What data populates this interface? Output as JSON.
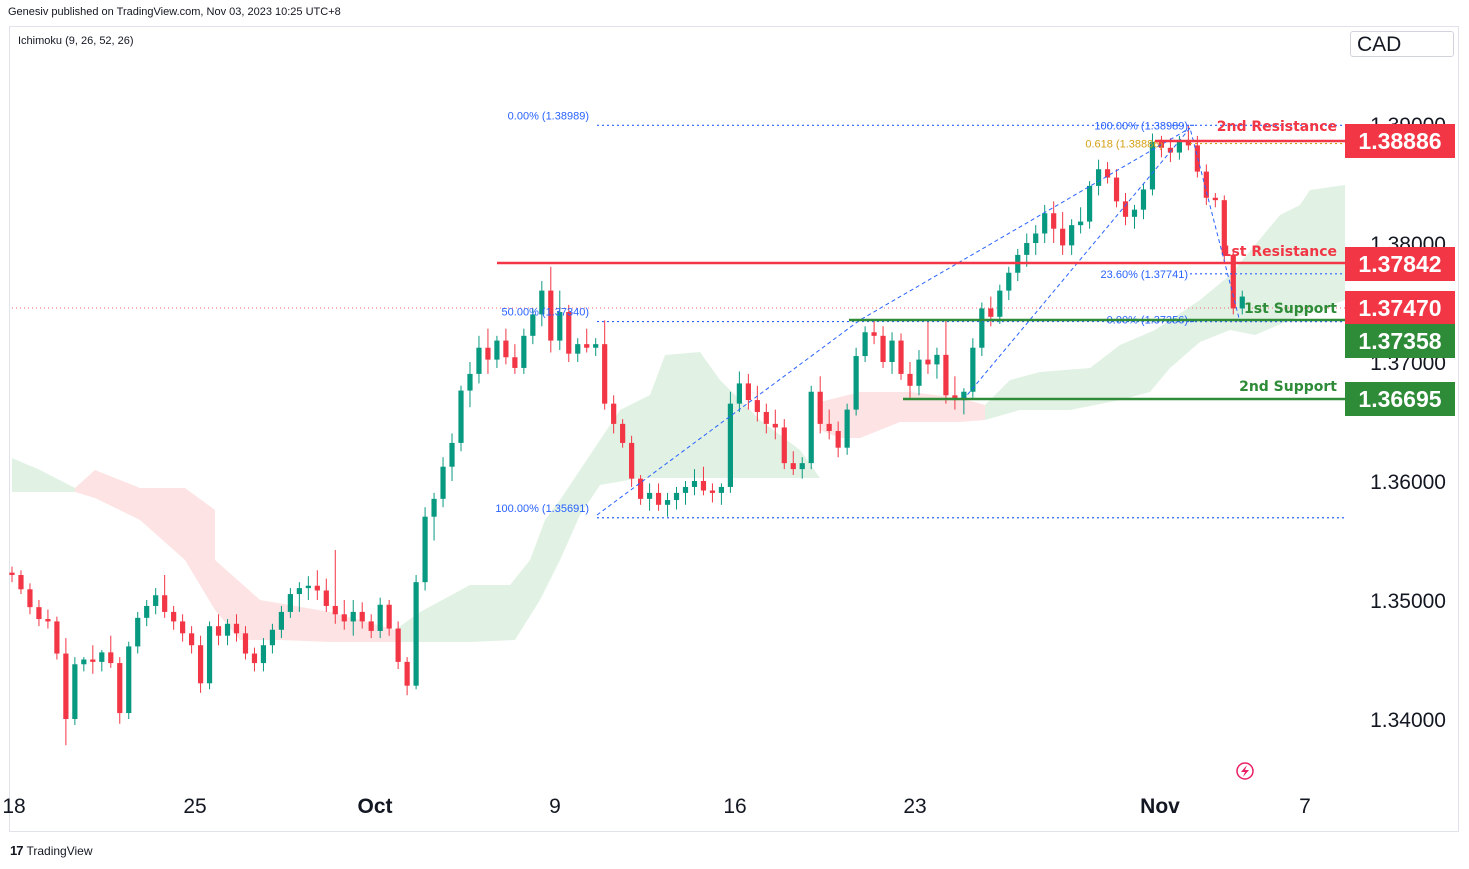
{
  "header": {
    "published": "Genesiv published on TradingView.com, Nov 03, 2023 10:25 UTC+8"
  },
  "indicator": {
    "label": "Ichimoku (9, 26, 52, 26)"
  },
  "currency": "CAD",
  "footer": {
    "brand": "TradingView"
  },
  "colors": {
    "up": "#089981",
    "down": "#f23645",
    "resistance": "#f23645",
    "support": "#2e8b37",
    "fib": "#2962ff",
    "fib_golden": "#d4a017",
    "cloud_bull": "#e1f2e4",
    "cloud_bear": "#fde3e3"
  },
  "chart_data": {
    "type": "candlestick",
    "y_axis": {
      "ticks": [
        "1.39000",
        "1.38000",
        "1.37000",
        "1.36000",
        "1.35000",
        "1.34000"
      ],
      "tick_values": [
        1.39,
        1.38,
        1.37,
        1.36,
        1.35,
        1.34
      ],
      "range": [
        1.3345,
        1.3935
      ]
    },
    "x_axis": {
      "ticks": [
        "18",
        "25",
        "Oct",
        "9",
        "16",
        "23",
        "Nov",
        "7"
      ]
    },
    "candles": [
      [
        1.3523,
        1.3528,
        1.3515,
        1.3521
      ],
      [
        1.3521,
        1.3525,
        1.3505,
        1.3509
      ],
      [
        1.3509,
        1.3514,
        1.3488,
        1.3494
      ],
      [
        1.3494,
        1.35,
        1.3478,
        1.3484
      ],
      [
        1.3484,
        1.3492,
        1.3476,
        1.3482
      ],
      [
        1.3482,
        1.3486,
        1.345,
        1.3455
      ],
      [
        1.3455,
        1.3468,
        1.3378,
        1.34
      ],
      [
        1.34,
        1.3452,
        1.3395,
        1.3446
      ],
      [
        1.3446,
        1.3452,
        1.344,
        1.345
      ],
      [
        1.345,
        1.3462,
        1.3438,
        1.3448
      ],
      [
        1.3448,
        1.3458,
        1.344,
        1.3456
      ],
      [
        1.3456,
        1.347,
        1.3443,
        1.3447
      ],
      [
        1.3447,
        1.3452,
        1.3396,
        1.3405
      ],
      [
        1.3405,
        1.3465,
        1.34,
        1.3461
      ],
      [
        1.3461,
        1.349,
        1.3455,
        1.3485
      ],
      [
        1.3485,
        1.35,
        1.3478,
        1.3495
      ],
      [
        1.3495,
        1.351,
        1.3488,
        1.3504
      ],
      [
        1.3504,
        1.3521,
        1.3485,
        1.349
      ],
      [
        1.349,
        1.3495,
        1.3475,
        1.3482
      ],
      [
        1.3482,
        1.3488,
        1.3465,
        1.3472
      ],
      [
        1.3472,
        1.3478,
        1.3455,
        1.3462
      ],
      [
        1.3462,
        1.347,
        1.3422,
        1.343
      ],
      [
        1.343,
        1.3482,
        1.3425,
        1.3478
      ],
      [
        1.3478,
        1.3488,
        1.3462,
        1.347
      ],
      [
        1.347,
        1.3484,
        1.3462,
        1.348
      ],
      [
        1.348,
        1.3488,
        1.3465,
        1.3472
      ],
      [
        1.3472,
        1.3478,
        1.345,
        1.3455
      ],
      [
        1.3455,
        1.346,
        1.344,
        1.3447
      ],
      [
        1.3447,
        1.3468,
        1.344,
        1.3462
      ],
      [
        1.3462,
        1.348,
        1.3455,
        1.3475
      ],
      [
        1.3475,
        1.3495,
        1.3468,
        1.349
      ],
      [
        1.349,
        1.351,
        1.3485,
        1.3505
      ],
      [
        1.3505,
        1.3515,
        1.349,
        1.351
      ],
      [
        1.351,
        1.352,
        1.35,
        1.3512
      ],
      [
        1.3512,
        1.3525,
        1.35,
        1.3508
      ],
      [
        1.3508,
        1.3518,
        1.349,
        1.3495
      ],
      [
        1.3495,
        1.3542,
        1.348,
        1.3488
      ],
      [
        1.3488,
        1.35,
        1.3475,
        1.3482
      ],
      [
        1.3482,
        1.35,
        1.347,
        1.349
      ],
      [
        1.349,
        1.3498,
        1.3476,
        1.3482
      ],
      [
        1.3482,
        1.3488,
        1.3468,
        1.3474
      ],
      [
        1.3474,
        1.3502,
        1.3468,
        1.3496
      ],
      [
        1.3496,
        1.35,
        1.347,
        1.3476
      ],
      [
        1.3476,
        1.3482,
        1.3442,
        1.3448
      ],
      [
        1.3448,
        1.3452,
        1.342,
        1.3428
      ],
      [
        1.3428,
        1.3521,
        1.3425,
        1.3515
      ],
      [
        1.3515,
        1.3578,
        1.3508,
        1.357
      ],
      [
        1.357,
        1.359,
        1.355,
        1.3585
      ],
      [
        1.3585,
        1.362,
        1.3578,
        1.3612
      ],
      [
        1.3612,
        1.364,
        1.36,
        1.3632
      ],
      [
        1.3632,
        1.368,
        1.3625,
        1.3676
      ],
      [
        1.3676,
        1.37,
        1.3662,
        1.369
      ],
      [
        1.369,
        1.3722,
        1.3682,
        1.3712
      ],
      [
        1.3712,
        1.3728,
        1.369,
        1.3702
      ],
      [
        1.3702,
        1.3722,
        1.3695,
        1.3718
      ],
      [
        1.3718,
        1.3728,
        1.3698,
        1.3704
      ],
      [
        1.3704,
        1.3715,
        1.369,
        1.3695
      ],
      [
        1.3695,
        1.3728,
        1.369,
        1.3722
      ],
      [
        1.3722,
        1.3745,
        1.3715,
        1.374
      ],
      [
        1.374,
        1.3768,
        1.373,
        1.376
      ],
      [
        1.376,
        1.378,
        1.3708,
        1.3718
      ],
      [
        1.3718,
        1.376,
        1.371,
        1.3742
      ],
      [
        1.3742,
        1.3748,
        1.37,
        1.3707
      ],
      [
        1.3707,
        1.372,
        1.37,
        1.3715
      ],
      [
        1.3715,
        1.3728,
        1.3708,
        1.3712
      ],
      [
        1.3712,
        1.372,
        1.3705,
        1.3715
      ],
      [
        1.3715,
        1.3735,
        1.366,
        1.3665
      ],
      [
        1.3665,
        1.3672,
        1.364,
        1.3648
      ],
      [
        1.3648,
        1.3652,
        1.3628,
        1.3632
      ],
      [
        1.3632,
        1.3638,
        1.3595,
        1.3602
      ],
      [
        1.3602,
        1.3605,
        1.358,
        1.3585
      ],
      [
        1.3585,
        1.3598,
        1.3575,
        1.359
      ],
      [
        1.359,
        1.3598,
        1.3575,
        1.358
      ],
      [
        1.358,
        1.359,
        1.357,
        1.3584
      ],
      [
        1.3584,
        1.3595,
        1.3576,
        1.359
      ],
      [
        1.359,
        1.36,
        1.358,
        1.3595
      ],
      [
        1.3595,
        1.361,
        1.3588,
        1.36
      ],
      [
        1.36,
        1.3612,
        1.3588,
        1.3592
      ],
      [
        1.3592,
        1.3598,
        1.3582,
        1.359
      ],
      [
        1.359,
        1.3598,
        1.358,
        1.3595
      ],
      [
        1.3595,
        1.3675,
        1.359,
        1.3665
      ],
      [
        1.3665,
        1.3692,
        1.3658,
        1.3682
      ],
      [
        1.3682,
        1.369,
        1.366,
        1.3668
      ],
      [
        1.3668,
        1.368,
        1.365,
        1.3658
      ],
      [
        1.3658,
        1.3665,
        1.364,
        1.3648
      ],
      [
        1.3648,
        1.366,
        1.3635,
        1.3645
      ],
      [
        1.3645,
        1.3652,
        1.361,
        1.3615
      ],
      [
        1.3615,
        1.3625,
        1.3605,
        1.361
      ],
      [
        1.361,
        1.362,
        1.3602,
        1.3615
      ],
      [
        1.3615,
        1.368,
        1.361,
        1.3675
      ],
      [
        1.3675,
        1.3688,
        1.364,
        1.3648
      ],
      [
        1.3648,
        1.366,
        1.3635,
        1.3642
      ],
      [
        1.3642,
        1.365,
        1.362,
        1.3628
      ],
      [
        1.3628,
        1.3665,
        1.3622,
        1.366
      ],
      [
        1.366,
        1.3712,
        1.3655,
        1.3705
      ],
      [
        1.3705,
        1.373,
        1.37,
        1.3725
      ],
      [
        1.3725,
        1.3736,
        1.3715,
        1.3722
      ],
      [
        1.3722,
        1.373,
        1.3695,
        1.37
      ],
      [
        1.37,
        1.3725,
        1.369,
        1.3718
      ],
      [
        1.3718,
        1.3724,
        1.3685,
        1.369
      ],
      [
        1.369,
        1.37,
        1.367,
        1.368
      ],
      [
        1.368,
        1.371,
        1.3672,
        1.3702
      ],
      [
        1.3702,
        1.3736,
        1.369,
        1.3698
      ],
      [
        1.3698,
        1.3712,
        1.3686,
        1.3706
      ],
      [
        1.3706,
        1.3736,
        1.3665,
        1.3672
      ],
      [
        1.3672,
        1.3688,
        1.366,
        1.3668
      ],
      [
        1.3668,
        1.3678,
        1.3656,
        1.3675
      ],
      [
        1.3675,
        1.372,
        1.367,
        1.3712
      ],
      [
        1.3712,
        1.375,
        1.3705,
        1.3745
      ],
      [
        1.3745,
        1.3755,
        1.373,
        1.3738
      ],
      [
        1.3738,
        1.3765,
        1.3732,
        1.376
      ],
      [
        1.376,
        1.378,
        1.3752,
        1.3775
      ],
      [
        1.3775,
        1.3795,
        1.3768,
        1.379
      ],
      [
        1.379,
        1.3808,
        1.378,
        1.38
      ],
      [
        1.38,
        1.3815,
        1.379,
        1.3808
      ],
      [
        1.3808,
        1.3832,
        1.38,
        1.3825
      ],
      [
        1.3825,
        1.3835,
        1.38,
        1.3812
      ],
      [
        1.3812,
        1.3826,
        1.379,
        1.3798
      ],
      [
        1.3798,
        1.382,
        1.379,
        1.3815
      ],
      [
        1.3815,
        1.383,
        1.3808,
        1.3818
      ],
      [
        1.3818,
        1.3852,
        1.3812,
        1.3848
      ],
      [
        1.3848,
        1.387,
        1.384,
        1.3862
      ],
      [
        1.3862,
        1.3868,
        1.385,
        1.3855
      ],
      [
        1.3855,
        1.3862,
        1.383,
        1.3835
      ],
      [
        1.3835,
        1.3842,
        1.3815,
        1.3822
      ],
      [
        1.3822,
        1.3832,
        1.3812,
        1.3828
      ],
      [
        1.3828,
        1.385,
        1.382,
        1.3845
      ],
      [
        1.3845,
        1.3892,
        1.384,
        1.3885
      ],
      [
        1.3885,
        1.389,
        1.3872,
        1.388
      ],
      [
        1.388,
        1.3888,
        1.3868,
        1.3876
      ],
      [
        1.3876,
        1.389,
        1.387,
        1.3885
      ],
      [
        1.3885,
        1.3899,
        1.3878,
        1.3882
      ],
      [
        1.3882,
        1.389,
        1.3855,
        1.386
      ],
      [
        1.386,
        1.3866,
        1.3832,
        1.3838
      ],
      [
        1.3838,
        1.3842,
        1.383,
        1.3836
      ],
      [
        1.3836,
        1.384,
        1.3784,
        1.379
      ],
      [
        1.379,
        1.3795,
        1.374,
        1.3745
      ],
      [
        1.3745,
        1.376,
        1.374,
        1.3755
      ]
    ],
    "levels": {
      "resistance_2": {
        "label": "2nd Resistance",
        "value": "1.38886"
      },
      "resistance_1": {
        "label": "1st Resistance",
        "value": "1.37842"
      },
      "current": {
        "value": "1.37470"
      },
      "support_1": {
        "label": "1st Support",
        "value": "1.37358"
      },
      "support_2": {
        "label": "2nd Support",
        "value": "1.36695"
      }
    },
    "fib_left": [
      {
        "label": "0.00% (1.38989)",
        "value": 1.38989
      },
      {
        "label": "50.00% (1.37340)",
        "value": 1.3734
      },
      {
        "label": "100.00% (1.35691)",
        "value": 1.35691
      }
    ],
    "fib_right": [
      {
        "label": "100.00% (1.38989)",
        "value": 1.38989
      },
      {
        "label": "0.618 (1.38886)",
        "value": 1.38886
      },
      {
        "label": "23.60% (1.37741)",
        "value": 1.37741
      },
      {
        "label": "0.00% (1.37356)",
        "value": 1.37356
      }
    ]
  }
}
